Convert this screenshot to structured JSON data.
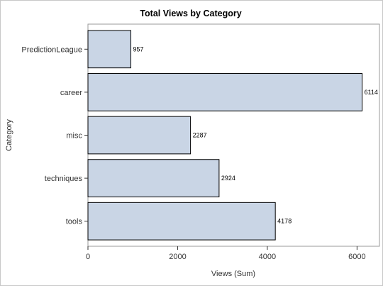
{
  "chart_data": {
    "type": "bar",
    "orientation": "horizontal",
    "title": "Total Views by Category",
    "xlabel": "Views (Sum)",
    "ylabel": "Category",
    "categories": [
      "PredictionLeague",
      "career",
      "misc",
      "techniques",
      "tools"
    ],
    "values": [
      957,
      6114,
      2287,
      2924,
      4178
    ],
    "xlim": [
      0,
      6500
    ],
    "xticks": [
      0,
      2000,
      4000,
      6000
    ],
    "grid": false,
    "legend": "none",
    "bar_color": "#c9d5e5",
    "bar_edge_color": "#000000"
  }
}
